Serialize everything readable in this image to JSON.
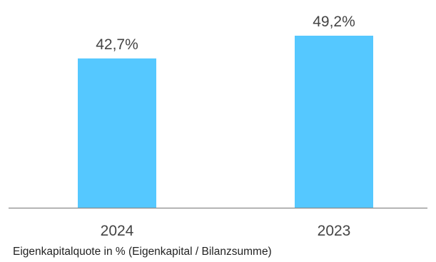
{
  "chart_data": {
    "type": "bar",
    "categories": [
      "2024",
      "2023"
    ],
    "values": [
      42.7,
      49.2
    ],
    "value_labels": [
      "42,7%",
      "49,2%"
    ],
    "unit": "%",
    "ylim": [
      0,
      49.2
    ],
    "grid": false,
    "legend": "none",
    "bar_color": "#55c8ff",
    "axis_color": "#8a8a8a",
    "text_color": "#444444"
  },
  "caption": "Eigenkapitalquote in % (Eigenkapital / Bilanzsumme)"
}
